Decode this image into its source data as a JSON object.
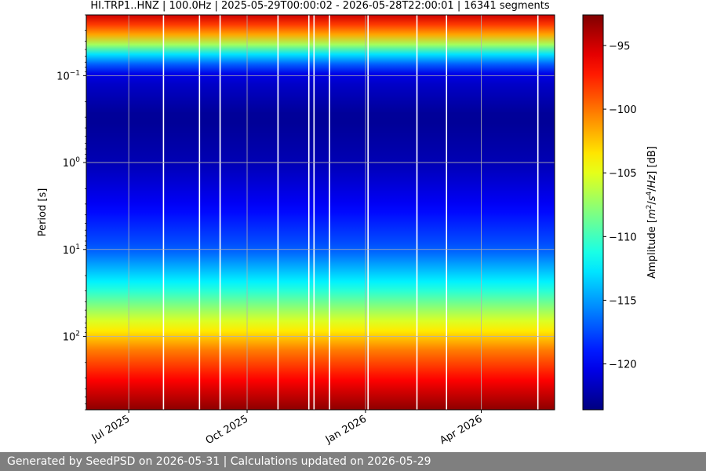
{
  "chart_data": {
    "type": "heatmap",
    "title": "HI.TRP1..HNZ | 100.0Hz | 2025-05-29T00:00:02 - 2026-05-28T22:00:01 | 16341 segments",
    "ylabel": "Period [s]",
    "y_scale": "log",
    "y_inverted": true,
    "y_range": [
      0.02,
      700
    ],
    "x_range": [
      "2025-05-29",
      "2026-05-28"
    ],
    "x_ticks": [
      {
        "date": "2025-07-01",
        "label": "Jul 2025"
      },
      {
        "date": "2025-10-01",
        "label": "Oct 2025"
      },
      {
        "date": "2026-01-01",
        "label": "Jan 2026"
      },
      {
        "date": "2026-04-01",
        "label": "Apr 2026"
      }
    ],
    "y_ticks": [
      {
        "value": 0.1,
        "base": "10",
        "exp": "−1"
      },
      {
        "value": 1,
        "base": "10",
        "exp": "0"
      },
      {
        "value": 10,
        "base": "10",
        "exp": "1"
      },
      {
        "value": 100,
        "base": "10",
        "exp": "2"
      }
    ],
    "grid": true,
    "colormap": "jet",
    "colorbar": {
      "label_html": "Amplitude [<tspan font-style=\"italic\">m</tspan><tspan baseline-shift=\"super\" font-size=\"9\">2</tspan>/<tspan font-style=\"italic\">s</tspan><tspan baseline-shift=\"super\" font-size=\"9\">4</tspan>/<tspan font-style=\"italic\">Hz</tspan>] [dB]",
      "range": [
        -123.6,
        -92.6
      ],
      "ticks": [
        {
          "value": -95,
          "label": "−95"
        },
        {
          "value": -100,
          "label": "−100"
        },
        {
          "value": -105,
          "label": "−105"
        },
        {
          "value": -110,
          "label": "−110"
        },
        {
          "value": -115,
          "label": "−115"
        },
        {
          "value": -120,
          "label": "−120"
        }
      ]
    },
    "period_profile": [
      {
        "period": 0.02,
        "db": -95
      },
      {
        "period": 0.035,
        "db": -102
      },
      {
        "period": 0.06,
        "db": -114
      },
      {
        "period": 0.1,
        "db": -121
      },
      {
        "period": 0.3,
        "db": -123
      },
      {
        "period": 1,
        "db": -122
      },
      {
        "period": 3,
        "db": -120
      },
      {
        "period": 10,
        "db": -117
      },
      {
        "period": 25,
        "db": -112
      },
      {
        "period": 60,
        "db": -106
      },
      {
        "period": 150,
        "db": -100
      },
      {
        "period": 350,
        "db": -96
      },
      {
        "period": 700,
        "db": -93
      }
    ],
    "gaps": [
      "2025-07-28",
      "2025-08-25",
      "2025-09-10",
      "2025-10-25",
      "2025-11-18",
      "2025-11-22",
      "2025-12-04",
      "2026-01-03",
      "2026-02-10",
      "2026-03-05",
      "2026-05-15"
    ]
  },
  "footer": {
    "text": "Generated by SeedPSD on 2026-05-31 | Calculations updated on 2026-05-29"
  }
}
